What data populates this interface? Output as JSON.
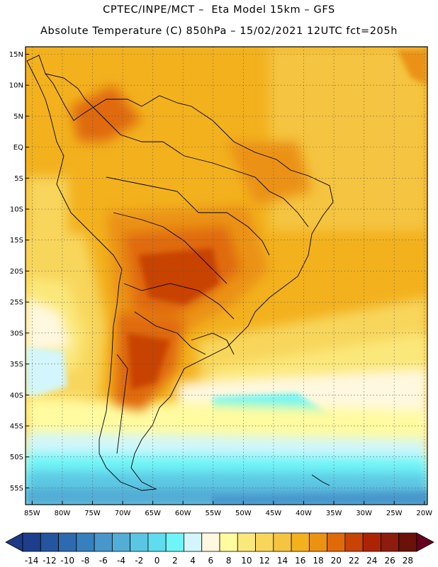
{
  "header": {
    "line1": "CPTEC/INPE/MCT –  Eta Model 15km – GFS",
    "line2": "Absolute Temperature (C) 850hPa – 15/02/2021 12UTC fct=205h"
  },
  "map": {
    "region": "South America",
    "lat_labels": [
      "15N",
      "10N",
      "5N",
      "EQ",
      "5S",
      "10S",
      "15S",
      "20S",
      "25S",
      "30S",
      "35S",
      "40S",
      "45S",
      "50S",
      "55S"
    ],
    "lon_labels": [
      "85W",
      "80W",
      "75W",
      "70W",
      "65W",
      "60W",
      "55W",
      "50W",
      "45W",
      "40W",
      "35W",
      "30W",
      "25W",
      "20W"
    ],
    "lon_range": [
      -86,
      -19
    ],
    "lat_range": [
      16,
      -58
    ]
  },
  "colorbar": {
    "labels": [
      "-14",
      "-12",
      "-10",
      "-8",
      "-6",
      "-4",
      "-2",
      "0",
      "2",
      "4",
      "6",
      "8",
      "10",
      "12",
      "14",
      "16",
      "18",
      "20",
      "22",
      "24",
      "26",
      "28"
    ],
    "colors": [
      "#1c3e8c",
      "#24559e",
      "#2e6aae",
      "#3780be",
      "#4797cc",
      "#52aed6",
      "#5bc6e3",
      "#5fdced",
      "#6ff5f7",
      "#d2f6fb",
      "#fff8e0",
      "#fffba0",
      "#fbe87a",
      "#f8d65b",
      "#f5c440",
      "#f3b11e",
      "#eb9212",
      "#e06a08",
      "#c84304",
      "#ad2405",
      "#8e1c0d",
      "#6a1109"
    ],
    "below_color": "#1d3a86",
    "above_color": "#660020"
  }
}
